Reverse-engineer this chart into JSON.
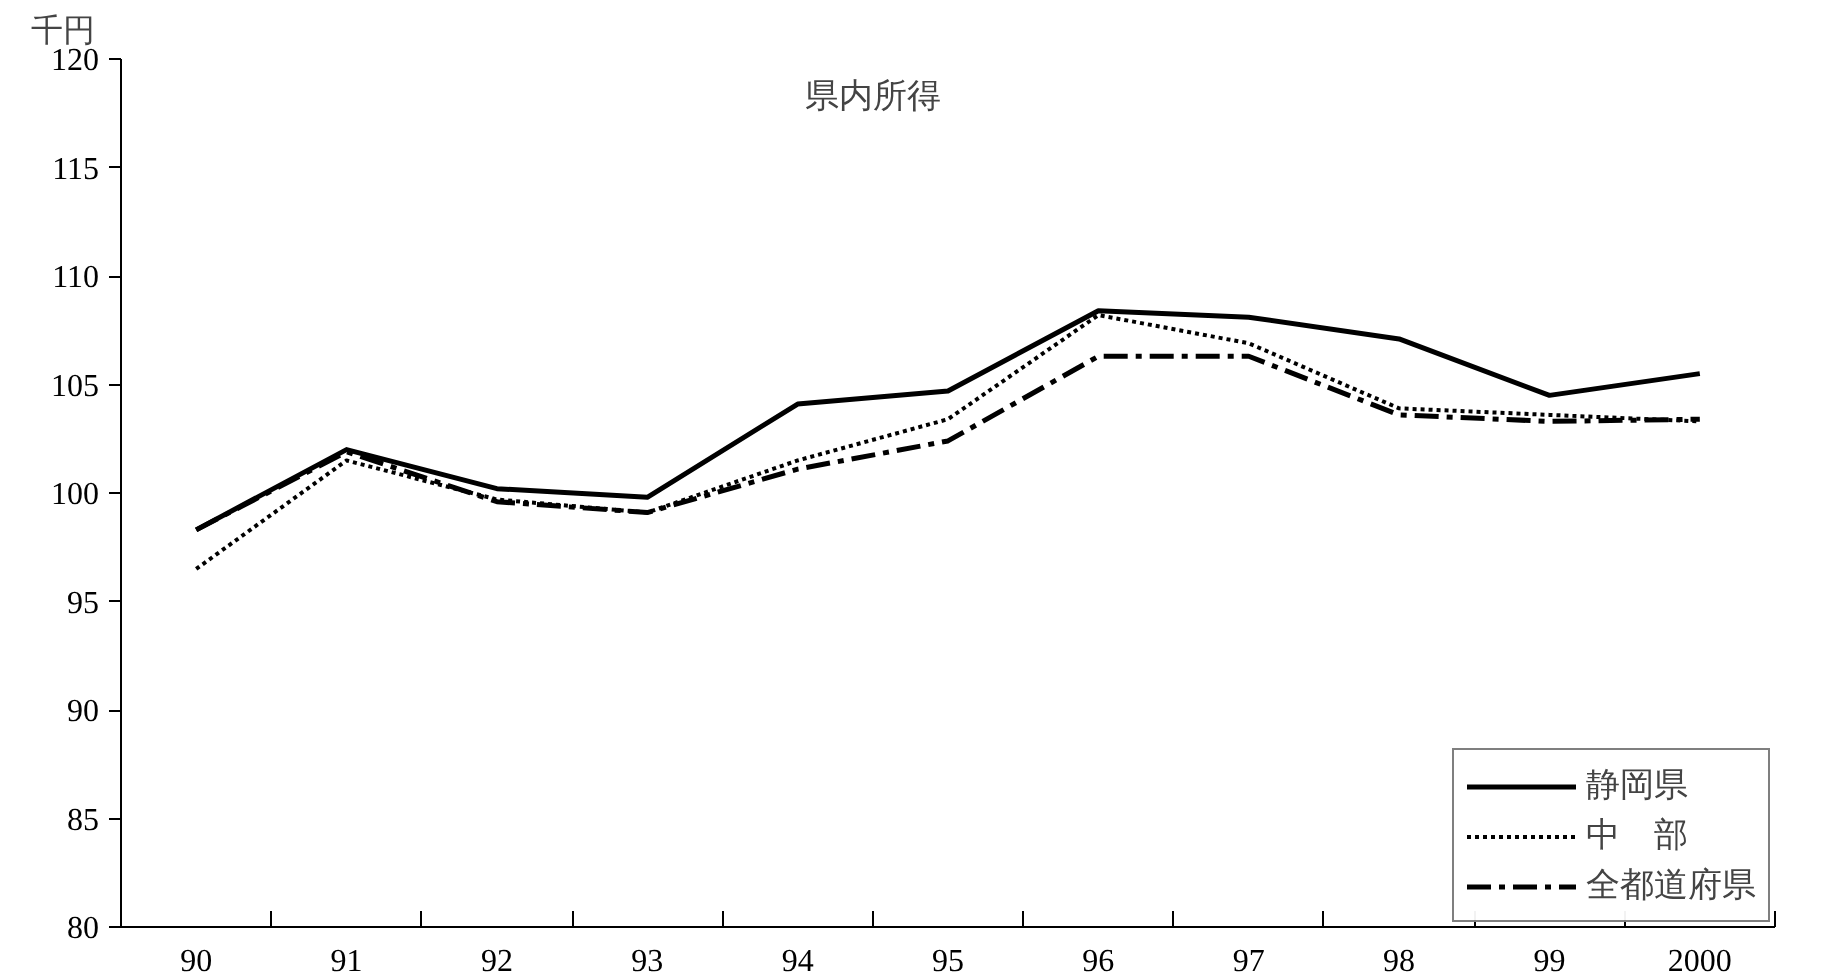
{
  "chart_data": {
    "type": "line",
    "title": "県内所得",
    "ylabel": "千円",
    "categories": [
      "90",
      "91",
      "92",
      "93",
      "94",
      "95",
      "96",
      "97",
      "98",
      "99",
      "2000"
    ],
    "series": [
      {
        "name": "静岡県",
        "color": "#000000",
        "line_style": "solid",
        "values": [
          98.3,
          102.0,
          100.2,
          99.8,
          104.1,
          104.7,
          108.4,
          108.1,
          107.1,
          104.5,
          105.5
        ]
      },
      {
        "name": "中　部",
        "color": "#000000",
        "line_style": "dotted",
        "values": [
          96.5,
          101.5,
          99.7,
          99.1,
          101.5,
          103.4,
          108.2,
          106.9,
          103.9,
          103.6,
          103.3
        ]
      },
      {
        "name": "全都道府県",
        "color": "#000000",
        "line_style": "dashdot",
        "values": [
          98.3,
          101.9,
          99.6,
          99.1,
          101.1,
          102.4,
          106.3,
          106.3,
          103.6,
          103.3,
          103.4
        ]
      }
    ],
    "ylim": [
      80,
      120
    ],
    "yticks": [
      80,
      85,
      90,
      95,
      100,
      105,
      110,
      115,
      120
    ],
    "grid": false,
    "legend": "bottom right",
    "marker": "none"
  }
}
